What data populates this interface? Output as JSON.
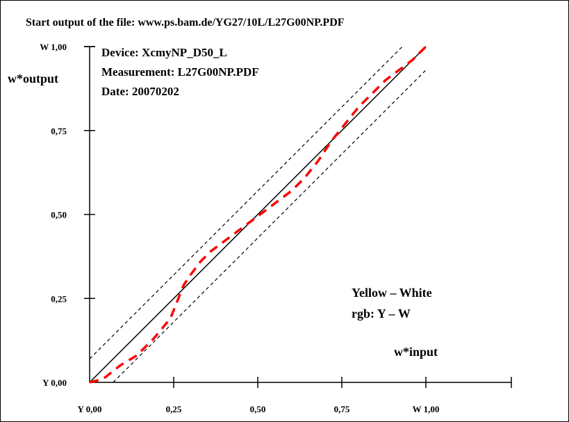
{
  "header": {
    "title": "Start output of the file: www.ps.bam.de/YG27/10L/L27G00NP.PDF"
  },
  "info": {
    "device": "Device: XcmyNP_D50_L",
    "measurement": "Measurement: L27G00NP.PDF",
    "date": "Date: 20070202"
  },
  "annotations": {
    "color_pair": "Yellow – White",
    "rgb_pair": "rgb: Y – W"
  },
  "colors": {
    "measured_curve": "#ff0000",
    "ideal_line": "#000000",
    "tolerance_lines": "#000000"
  },
  "chart_data": {
    "type": "line",
    "xlabel": "w*input",
    "ylabel": "w*output",
    "xlim": [
      0,
      1
    ],
    "ylim": [
      0,
      1
    ],
    "xticks": [
      {
        "value": 0.0,
        "label": "Y 0,00"
      },
      {
        "value": 0.25,
        "label": "0,25"
      },
      {
        "value": 0.5,
        "label": "0,50"
      },
      {
        "value": 0.75,
        "label": "0,75"
      },
      {
        "value": 1.0,
        "label": "W 1,00"
      }
    ],
    "yticks": [
      {
        "value": 0.0,
        "label": "Y 0,00"
      },
      {
        "value": 0.25,
        "label": "0,25"
      },
      {
        "value": 0.5,
        "label": "0,50"
      },
      {
        "value": 0.75,
        "label": "0,75"
      },
      {
        "value": 1.0,
        "label": "W 1,00"
      }
    ],
    "grid": false,
    "series": [
      {
        "style": "solid",
        "color": "#000000",
        "x": [
          0.0,
          1.0
        ],
        "y": [
          0.0,
          1.0
        ]
      },
      {
        "style": "dotted",
        "color": "#000000",
        "x": [
          0.0,
          0.93
        ],
        "y": [
          0.07,
          1.0
        ]
      },
      {
        "style": "dotted",
        "color": "#000000",
        "x": [
          0.07,
          1.0
        ],
        "y": [
          0.0,
          0.93
        ]
      },
      {
        "style": "dashed",
        "color": "#ff0000",
        "x": [
          0.0,
          0.04,
          0.09,
          0.14,
          0.19,
          0.24,
          0.26,
          0.28,
          0.3,
          0.33,
          0.36,
          0.4,
          0.44,
          0.48,
          0.52,
          0.56,
          0.6,
          0.64,
          0.68,
          0.72,
          0.76,
          0.8,
          0.84,
          0.88,
          0.92,
          0.96,
          1.0
        ],
        "y": [
          0.0,
          0.01,
          0.05,
          0.08,
          0.13,
          0.19,
          0.24,
          0.29,
          0.32,
          0.36,
          0.39,
          0.42,
          0.45,
          0.48,
          0.51,
          0.54,
          0.57,
          0.61,
          0.66,
          0.72,
          0.77,
          0.82,
          0.86,
          0.9,
          0.93,
          0.96,
          1.0
        ]
      }
    ]
  }
}
